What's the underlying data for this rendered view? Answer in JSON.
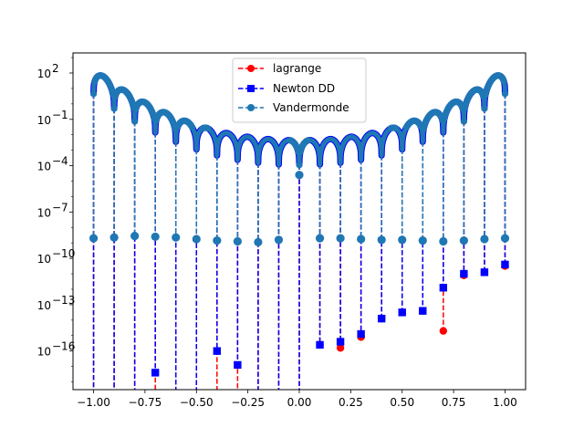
{
  "chart_data": {
    "type": "line",
    "title": "",
    "xlabel": "",
    "ylabel": "",
    "xlim": [
      -1.1,
      1.1
    ],
    "ylim_log10": [
      -18.5,
      3.3
    ],
    "yscale": "log",
    "grid": false,
    "legend_position": "top-center",
    "x_ticks": [
      -1.0,
      -0.75,
      -0.5,
      -0.25,
      0.0,
      0.25,
      0.5,
      0.75,
      1.0
    ],
    "x_tick_labels": [
      "−1.00",
      "−0.75",
      "−0.50",
      "−0.25",
      "0.00",
      "0.25",
      "0.50",
      "0.75",
      "1.00"
    ],
    "y_ticks_exponent": [
      2,
      -1,
      -4,
      -7,
      -10,
      -13,
      -16
    ],
    "y_tick_labels": [
      "10^2",
      "10^-1",
      "10^-4",
      "10^-7",
      "10^-10",
      "10^-13",
      "10^-16"
    ],
    "nodes": [
      -1.0,
      -0.9,
      -0.8,
      -0.7,
      -0.6,
      -0.5,
      -0.4,
      -0.3,
      -0.2,
      -0.1,
      0.0,
      0.1,
      0.2,
      0.3,
      0.4,
      0.5,
      0.6,
      0.7,
      0.8,
      0.9,
      1.0
    ],
    "series": [
      {
        "name": "lagrange",
        "color": "#ff0000",
        "marker": "circle",
        "node_error_log10": [
          null,
          null,
          null,
          null,
          null,
          null,
          null,
          null,
          null,
          null,
          null,
          -15.6,
          -15.8,
          -15.1,
          -13.9,
          -13.5,
          -13.4,
          -14.7,
          -11.1,
          -10.9,
          -10.5
        ]
      },
      {
        "name": "Newton DD",
        "color": "#0000ff",
        "marker": "square",
        "node_error_log10": [
          null,
          null,
          null,
          -17.4,
          null,
          null,
          -16.0,
          -16.9,
          null,
          null,
          null,
          -15.6,
          -15.4,
          -14.9,
          -13.9,
          -13.5,
          -13.4,
          -11.9,
          -11.0,
          -10.9,
          -10.4
        ]
      },
      {
        "name": "Vandermonde",
        "color": "#1f77b4",
        "marker": "circle",
        "node_error_log10": [
          -8.7,
          -8.65,
          -8.55,
          -8.6,
          -8.65,
          -8.75,
          -8.85,
          -8.9,
          -8.95,
          -8.8,
          -4.6,
          -8.7,
          -8.7,
          -8.75,
          -8.8,
          -8.8,
          -8.85,
          -8.9,
          -8.85,
          -8.75,
          -8.7
        ]
      }
    ]
  }
}
